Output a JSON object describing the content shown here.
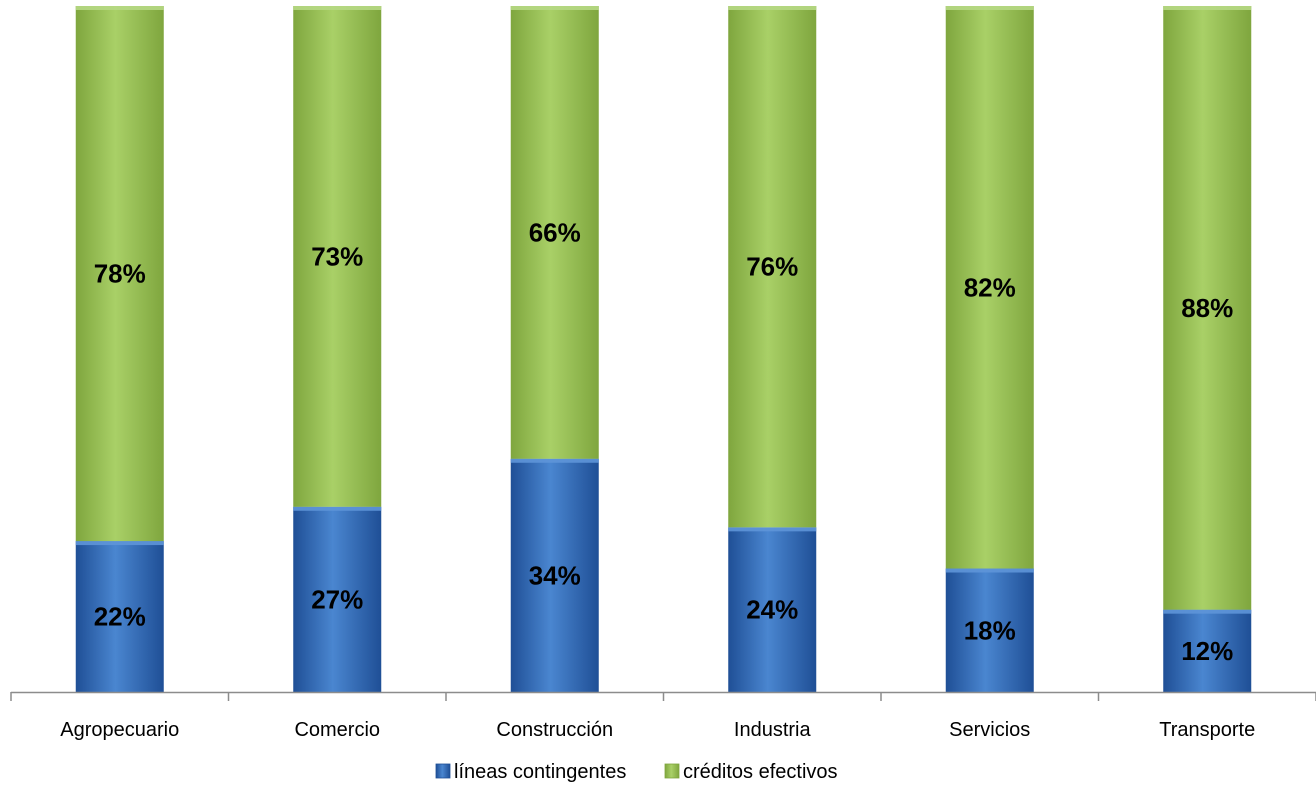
{
  "chart_data": {
    "type": "bar",
    "stacked": true,
    "categories": [
      "Agropecuario",
      "Comercio",
      "Construcción",
      "Industria",
      "Servicios",
      "Transporte"
    ],
    "series": [
      {
        "name": "líneas contingentes",
        "values": [
          22,
          27,
          34,
          24,
          18,
          12
        ],
        "labels": [
          "22%",
          "27%",
          "34%",
          "24%",
          "18%",
          "12%"
        ],
        "color": "#3a70be"
      },
      {
        "name": "créditos efectivos",
        "values": [
          78,
          73,
          66,
          76,
          82,
          88
        ],
        "labels": [
          "78%",
          "73%",
          "66%",
          "76%",
          "82%",
          "88%"
        ],
        "color": "#9bc35a"
      }
    ],
    "ylim": [
      0,
      100
    ],
    "grid": false,
    "legend_position": "bottom",
    "title": "",
    "xlabel": "",
    "ylabel": ""
  }
}
